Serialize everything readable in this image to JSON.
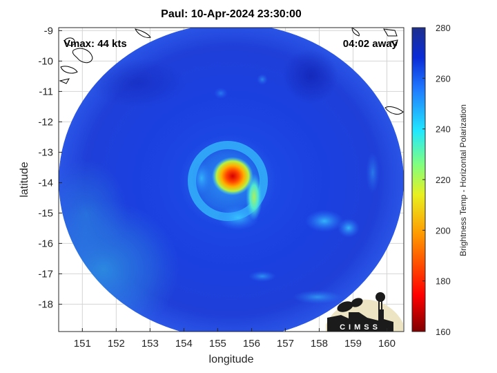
{
  "title": "Paul: 10-Apr-2024 23:30:00",
  "vmax_label": "Vmax: 44 kts",
  "time_away": "04:02 away",
  "xlabel": "longitude",
  "ylabel": "latitude",
  "colorbar_label": "Brightness Temp - Horizontal Polarization",
  "logo_text": "CIMSS",
  "colors": {
    "cold": "#1a33e6",
    "warm_core": "#e62a00",
    "colorbar_top": "#1e2f8c",
    "colorbar_bottom": "#7a0000"
  },
  "chart_data": {
    "type": "heatmap",
    "xlim": [
      150.3,
      160.5
    ],
    "ylim": [
      -18.9,
      -8.9
    ],
    "xticks": [
      151,
      152,
      153,
      154,
      155,
      156,
      157,
      158,
      159,
      160
    ],
    "yticks": [
      -9,
      -10,
      -11,
      -12,
      -13,
      -14,
      -15,
      -16,
      -17,
      -18
    ],
    "colorbar": {
      "min": 160,
      "max": 280,
      "ticks": [
        280,
        260,
        240,
        220,
        200,
        180,
        160
      ]
    },
    "grid": true,
    "storm_center": {
      "lon": 155.4,
      "lat": -13.95,
      "min_temp": 185
    }
  }
}
